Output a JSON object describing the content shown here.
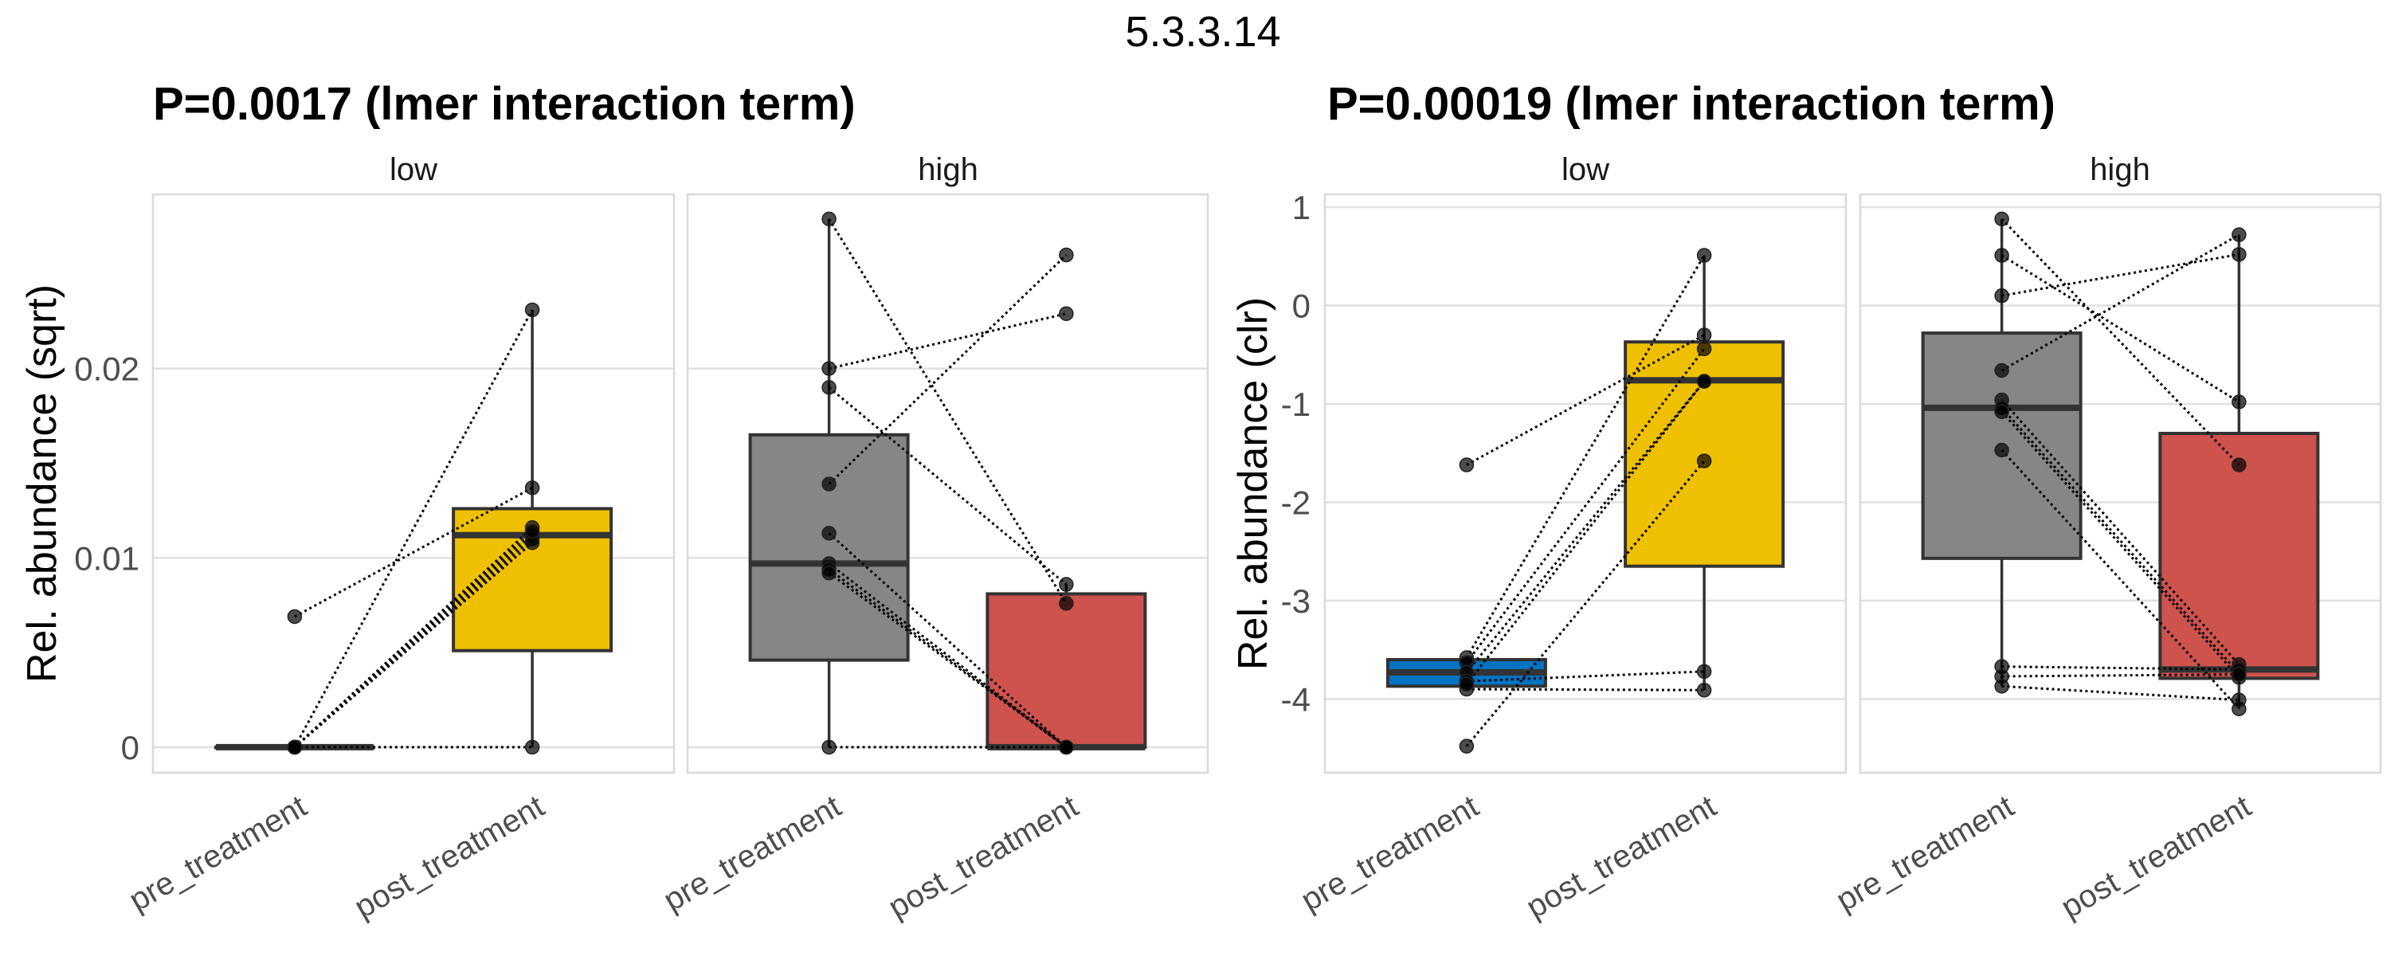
{
  "figure": {
    "main_title": "5.3.3.14",
    "colors": {
      "pre_low": "#0073C2",
      "post": "#EFC000",
      "pre_high": "#868686",
      "post_high": "#CD534C",
      "outline": "#333333"
    }
  },
  "chart_data": [
    {
      "type": "box",
      "title": "P=0.0017 (lmer interaction term)",
      "ylabel": "Rel. abundance (sqrt)",
      "xlabel": "",
      "ylim": [
        -0.00135,
        0.0292
      ],
      "yticks": [
        0,
        0.01,
        0.02
      ],
      "ytick_labels": [
        "0",
        "0.01",
        "0.02"
      ],
      "grid": true,
      "facets": [
        {
          "label": "low",
          "categories": [
            "pre_treatment",
            "post_treatment"
          ],
          "boxes": [
            {
              "category": "pre_treatment",
              "color_key": "pre_low",
              "q1": 0,
              "median": 0,
              "q3": 0,
              "whisker_low": 0,
              "whisker_high": 0,
              "points": [
                0.0069,
                0,
                0,
                0,
                0,
                0,
                0,
                0
              ]
            },
            {
              "category": "post_treatment",
              "color_key": "post",
              "q1": 0.0051,
              "median": 0.0112,
              "q3": 0.0126,
              "whisker_low": 0,
              "whisker_high": 0.0231,
              "points": [
                0.0137,
                0.0231,
                0.0116,
                0.0112,
                0.011,
                0.0108,
                0.0114,
                0
              ]
            }
          ],
          "pairs": [
            [
              0.0069,
              0.0137
            ],
            [
              0,
              0.0231
            ],
            [
              0,
              0.0116
            ],
            [
              0,
              0.0112
            ],
            [
              0,
              0.011
            ],
            [
              0,
              0.0108
            ],
            [
              0,
              0.0114
            ],
            [
              0,
              0
            ]
          ]
        },
        {
          "label": "high",
          "categories": [
            "pre_treatment",
            "post_treatment"
          ],
          "boxes": [
            {
              "category": "pre_treatment",
              "color_key": "pre_high",
              "q1": 0.0046,
              "median": 0.0097,
              "q3": 0.0165,
              "whisker_low": 0,
              "whisker_high": 0.0279,
              "points": [
                0.0279,
                0.02,
                0.019,
                0.0139,
                0.0113,
                0.0097,
                0.0094,
                0.0092,
                0
              ]
            },
            {
              "category": "post_treatment",
              "color_key": "post_high",
              "q1": 0,
              "median": 0,
              "q3": 0.0081,
              "whisker_low": 0,
              "whisker_high": 0.0086,
              "points": [
                0.0076,
                0.0229,
                0.0086,
                0.026,
                0,
                0,
                0,
                0,
                0
              ]
            }
          ],
          "pairs": [
            [
              0.0279,
              0.0076
            ],
            [
              0.02,
              0.0229
            ],
            [
              0.019,
              0.0086
            ],
            [
              0.0139,
              0.026
            ],
            [
              0.0113,
              0
            ],
            [
              0.0097,
              0
            ],
            [
              0.0094,
              0
            ],
            [
              0.0092,
              0
            ],
            [
              0,
              0
            ]
          ]
        }
      ]
    },
    {
      "type": "box",
      "title": "P=0.00019 (lmer interaction term)",
      "ylabel": "Rel. abundance (clr)",
      "xlabel": "",
      "ylim": [
        -4.75,
        1.13
      ],
      "yticks": [
        -4,
        -3,
        -2,
        -1,
        0,
        1
      ],
      "ytick_labels": [
        "-4",
        "-3",
        "-2",
        "-1",
        "0",
        "1"
      ],
      "grid": true,
      "facets": [
        {
          "label": "low",
          "categories": [
            "pre_treatment",
            "post_treatment"
          ],
          "boxes": [
            {
              "category": "pre_treatment",
              "color_key": "pre_low",
              "q1": -3.87,
              "median": -3.73,
              "q3": -3.6,
              "whisker_low": -3.9,
              "whisker_high": -3.58,
              "points": [
                -1.62,
                -3.58,
                -3.63,
                -3.73,
                -3.82,
                -3.9,
                -4.48,
                -3.85
              ]
            },
            {
              "category": "post_treatment",
              "color_key": "post",
              "q1": -2.65,
              "median": -0.76,
              "q3": -0.37,
              "whisker_low": -3.91,
              "whisker_high": 0.51,
              "points": [
                -0.3,
                0.51,
                -0.44,
                -0.77,
                -3.72,
                -3.91,
                -1.58,
                -0.77
              ]
            }
          ],
          "pairs": [
            [
              -1.62,
              -0.3
            ],
            [
              -3.58,
              0.51
            ],
            [
              -3.63,
              -0.44
            ],
            [
              -3.73,
              -0.77
            ],
            [
              -3.82,
              -3.72
            ],
            [
              -3.9,
              -3.91
            ],
            [
              -4.48,
              -1.58
            ],
            [
              -3.85,
              -0.77
            ]
          ]
        },
        {
          "label": "high",
          "categories": [
            "pre_treatment",
            "post_treatment"
          ],
          "boxes": [
            {
              "category": "pre_treatment",
              "color_key": "pre_high",
              "q1": -2.57,
              "median": -1.04,
              "q3": -0.28,
              "whisker_low": -3.87,
              "whisker_high": 0.88,
              "points": [
                0.88,
                0.51,
                0.1,
                -0.66,
                -0.96,
                -1.04,
                -1.08,
                -1.47,
                -3.67,
                -3.77,
                -3.87
              ]
            },
            {
              "category": "post_treatment",
              "color_key": "post_high",
              "q1": -3.79,
              "median": -3.7,
              "q3": -1.3,
              "whisker_low": -4.1,
              "whisker_high": 0.72,
              "points": [
                -1.62,
                -0.98,
                0.52,
                0.72,
                -3.65,
                -3.74,
                -3.78,
                -4.1,
                -3.7,
                -3.75,
                -4.01
              ]
            }
          ],
          "pairs": [
            [
              0.88,
              -1.62
            ],
            [
              0.51,
              -0.98
            ],
            [
              0.1,
              0.52
            ],
            [
              -0.66,
              0.72
            ],
            [
              -0.96,
              -3.65
            ],
            [
              -1.04,
              -3.74
            ],
            [
              -1.08,
              -3.78
            ],
            [
              -1.47,
              -4.1
            ],
            [
              -3.67,
              -3.7
            ],
            [
              -3.77,
              -3.75
            ],
            [
              -3.87,
              -4.01
            ]
          ]
        }
      ]
    }
  ]
}
